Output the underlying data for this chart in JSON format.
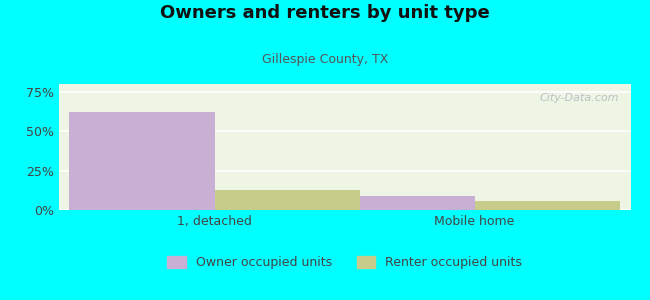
{
  "title": "Owners and renters by unit type",
  "subtitle": "Gillespie County, TX",
  "categories": [
    "1, detached",
    "Mobile home"
  ],
  "owner_values": [
    62,
    9
  ],
  "renter_values": [
    13,
    6
  ],
  "owner_color": "#c9afd4",
  "renter_color": "#c8cc8a",
  "background_outer": "#00ffff",
  "yticks": [
    0,
    25,
    50,
    75
  ],
  "ylim": [
    0,
    80
  ],
  "bar_width": 0.28,
  "legend_labels": [
    "Owner occupied units",
    "Renter occupied units"
  ],
  "title_fontsize": 13,
  "subtitle_fontsize": 9,
  "tick_fontsize": 9,
  "watermark": "City-Data.com"
}
